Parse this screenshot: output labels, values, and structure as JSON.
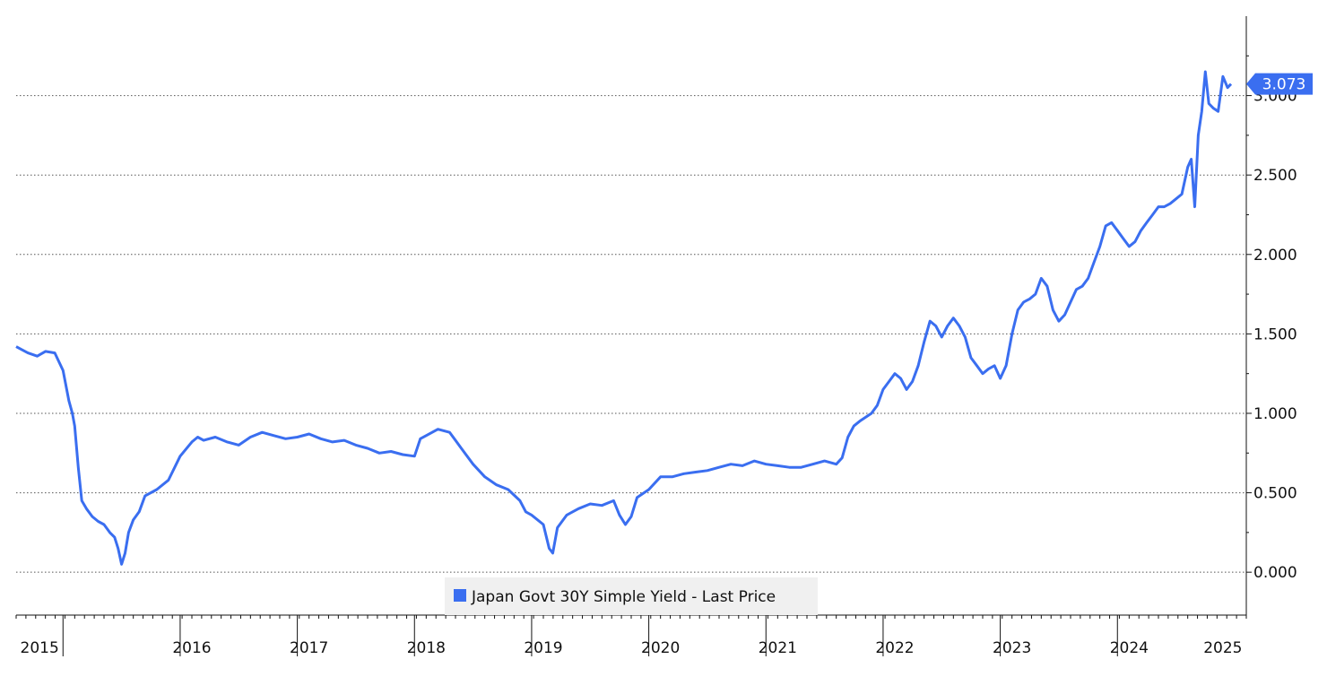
{
  "chart_data": {
    "type": "line",
    "title": "",
    "xlabel": "",
    "ylabel": "",
    "ylim": [
      -0.27,
      3.5
    ],
    "xlim": [
      2015.0,
      2025.5
    ],
    "grid": true,
    "y_axis_side": "right",
    "legend_placement": "bottom-center",
    "y_ticks": [
      {
        "value": 0.0,
        "label": "0.000"
      },
      {
        "value": 0.5,
        "label": "0.500"
      },
      {
        "value": 1.0,
        "label": "1.000"
      },
      {
        "value": 1.5,
        "label": "1.500"
      },
      {
        "value": 2.0,
        "label": "2.000"
      },
      {
        "value": 2.5,
        "label": "2.500"
      },
      {
        "value": 3.0,
        "label": "3.000"
      }
    ],
    "x_year_labels": [
      {
        "value": 2015.2,
        "label": "2015"
      },
      {
        "value": 2016.5,
        "label": "2016"
      },
      {
        "value": 2017.5,
        "label": "2017"
      },
      {
        "value": 2018.5,
        "label": "2018"
      },
      {
        "value": 2019.5,
        "label": "2019"
      },
      {
        "value": 2020.5,
        "label": "2020"
      },
      {
        "value": 2021.5,
        "label": "2021"
      },
      {
        "value": 2022.5,
        "label": "2022"
      },
      {
        "value": 2023.5,
        "label": "2023"
      },
      {
        "value": 2024.5,
        "label": "2024"
      },
      {
        "value": 2025.3,
        "label": "2025"
      }
    ],
    "year_boundaries": [
      2015.4,
      2016.4,
      2017.4,
      2018.4,
      2019.4,
      2020.4,
      2021.4,
      2022.4,
      2023.4,
      2024.4
    ],
    "last_price": {
      "value": 3.073,
      "label": "3.073"
    },
    "series": [
      {
        "name": "Japan Govt 30Y Simple Yield - Last Price",
        "color": "#3a6ef0",
        "points": [
          [
            2015.0,
            1.42
          ],
          [
            2015.05,
            1.4
          ],
          [
            2015.1,
            1.38
          ],
          [
            2015.18,
            1.36
          ],
          [
            2015.25,
            1.39
          ],
          [
            2015.33,
            1.38
          ],
          [
            2015.4,
            1.27
          ],
          [
            2015.45,
            1.08
          ],
          [
            2015.48,
            1.0
          ],
          [
            2015.5,
            0.92
          ],
          [
            2015.53,
            0.66
          ],
          [
            2015.56,
            0.45
          ],
          [
            2015.6,
            0.4
          ],
          [
            2015.65,
            0.35
          ],
          [
            2015.7,
            0.32
          ],
          [
            2015.75,
            0.3
          ],
          [
            2015.8,
            0.25
          ],
          [
            2015.84,
            0.22
          ],
          [
            2015.87,
            0.15
          ],
          [
            2015.9,
            0.05
          ],
          [
            2015.93,
            0.12
          ],
          [
            2015.96,
            0.25
          ],
          [
            2016.0,
            0.33
          ],
          [
            2016.05,
            0.38
          ],
          [
            2016.1,
            0.48
          ],
          [
            2016.2,
            0.52
          ],
          [
            2016.3,
            0.58
          ],
          [
            2016.4,
            0.73
          ],
          [
            2016.5,
            0.82
          ],
          [
            2016.55,
            0.85
          ],
          [
            2016.6,
            0.83
          ],
          [
            2016.7,
            0.85
          ],
          [
            2016.8,
            0.82
          ],
          [
            2016.9,
            0.8
          ],
          [
            2017.0,
            0.85
          ],
          [
            2017.1,
            0.88
          ],
          [
            2017.2,
            0.86
          ],
          [
            2017.3,
            0.84
          ],
          [
            2017.4,
            0.85
          ],
          [
            2017.5,
            0.87
          ],
          [
            2017.6,
            0.84
          ],
          [
            2017.7,
            0.82
          ],
          [
            2017.8,
            0.83
          ],
          [
            2017.9,
            0.8
          ],
          [
            2018.0,
            0.78
          ],
          [
            2018.1,
            0.75
          ],
          [
            2018.2,
            0.76
          ],
          [
            2018.3,
            0.74
          ],
          [
            2018.4,
            0.73
          ],
          [
            2018.45,
            0.84
          ],
          [
            2018.5,
            0.86
          ],
          [
            2018.6,
            0.9
          ],
          [
            2018.7,
            0.88
          ],
          [
            2018.8,
            0.78
          ],
          [
            2018.9,
            0.68
          ],
          [
            2019.0,
            0.6
          ],
          [
            2019.1,
            0.55
          ],
          [
            2019.2,
            0.52
          ],
          [
            2019.3,
            0.45
          ],
          [
            2019.35,
            0.38
          ],
          [
            2019.4,
            0.36
          ],
          [
            2019.5,
            0.3
          ],
          [
            2019.55,
            0.15
          ],
          [
            2019.58,
            0.12
          ],
          [
            2019.62,
            0.28
          ],
          [
            2019.7,
            0.36
          ],
          [
            2019.8,
            0.4
          ],
          [
            2019.9,
            0.43
          ],
          [
            2020.0,
            0.42
          ],
          [
            2020.1,
            0.45
          ],
          [
            2020.15,
            0.36
          ],
          [
            2020.2,
            0.3
          ],
          [
            2020.25,
            0.35
          ],
          [
            2020.3,
            0.47
          ],
          [
            2020.4,
            0.52
          ],
          [
            2020.5,
            0.6
          ],
          [
            2020.6,
            0.6
          ],
          [
            2020.7,
            0.62
          ],
          [
            2020.8,
            0.63
          ],
          [
            2020.9,
            0.64
          ],
          [
            2021.0,
            0.66
          ],
          [
            2021.1,
            0.68
          ],
          [
            2021.2,
            0.67
          ],
          [
            2021.3,
            0.7
          ],
          [
            2021.4,
            0.68
          ],
          [
            2021.5,
            0.67
          ],
          [
            2021.6,
            0.66
          ],
          [
            2021.7,
            0.66
          ],
          [
            2021.8,
            0.68
          ],
          [
            2021.9,
            0.7
          ],
          [
            2022.0,
            0.68
          ],
          [
            2022.05,
            0.72
          ],
          [
            2022.1,
            0.85
          ],
          [
            2022.15,
            0.92
          ],
          [
            2022.2,
            0.95
          ],
          [
            2022.3,
            1.0
          ],
          [
            2022.35,
            1.05
          ],
          [
            2022.4,
            1.15
          ],
          [
            2022.45,
            1.2
          ],
          [
            2022.5,
            1.25
          ],
          [
            2022.55,
            1.22
          ],
          [
            2022.6,
            1.15
          ],
          [
            2022.65,
            1.2
          ],
          [
            2022.7,
            1.3
          ],
          [
            2022.75,
            1.45
          ],
          [
            2022.8,
            1.58
          ],
          [
            2022.85,
            1.55
          ],
          [
            2022.9,
            1.48
          ],
          [
            2022.95,
            1.55
          ],
          [
            2023.0,
            1.6
          ],
          [
            2023.05,
            1.55
          ],
          [
            2023.1,
            1.48
          ],
          [
            2023.15,
            1.35
          ],
          [
            2023.2,
            1.3
          ],
          [
            2023.25,
            1.25
          ],
          [
            2023.3,
            1.28
          ],
          [
            2023.35,
            1.3
          ],
          [
            2023.4,
            1.22
          ],
          [
            2023.45,
            1.3
          ],
          [
            2023.5,
            1.5
          ],
          [
            2023.55,
            1.65
          ],
          [
            2023.6,
            1.7
          ],
          [
            2023.65,
            1.72
          ],
          [
            2023.7,
            1.75
          ],
          [
            2023.75,
            1.85
          ],
          [
            2023.8,
            1.8
          ],
          [
            2023.85,
            1.65
          ],
          [
            2023.9,
            1.58
          ],
          [
            2023.95,
            1.62
          ],
          [
            2024.0,
            1.7
          ],
          [
            2024.05,
            1.78
          ],
          [
            2024.1,
            1.8
          ],
          [
            2024.15,
            1.85
          ],
          [
            2024.2,
            1.95
          ],
          [
            2024.25,
            2.05
          ],
          [
            2024.3,
            2.18
          ],
          [
            2024.35,
            2.2
          ],
          [
            2024.4,
            2.15
          ],
          [
            2024.45,
            2.1
          ],
          [
            2024.5,
            2.05
          ],
          [
            2024.55,
            2.08
          ],
          [
            2024.6,
            2.15
          ],
          [
            2024.65,
            2.2
          ],
          [
            2024.7,
            2.25
          ],
          [
            2024.75,
            2.3
          ],
          [
            2024.8,
            2.3
          ],
          [
            2024.85,
            2.32
          ],
          [
            2024.9,
            2.35
          ],
          [
            2024.95,
            2.38
          ],
          [
            2025.0,
            2.55
          ],
          [
            2025.03,
            2.6
          ],
          [
            2025.06,
            2.3
          ],
          [
            2025.09,
            2.75
          ],
          [
            2025.12,
            2.9
          ],
          [
            2025.15,
            3.15
          ],
          [
            2025.18,
            2.95
          ],
          [
            2025.22,
            2.92
          ],
          [
            2025.26,
            2.9
          ],
          [
            2025.3,
            3.12
          ],
          [
            2025.34,
            3.05
          ],
          [
            2025.37,
            3.073
          ]
        ]
      }
    ]
  }
}
